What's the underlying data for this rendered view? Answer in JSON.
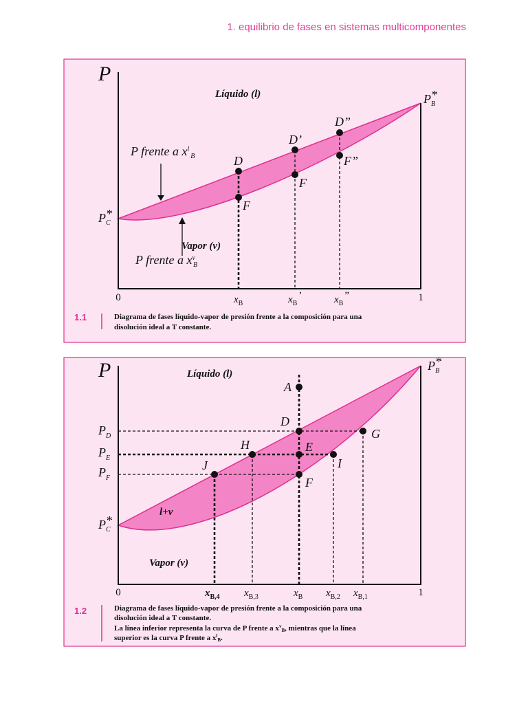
{
  "header": "1. equilibrio de fases en sistemas multicomponentes",
  "figures": [
    {
      "axis_label": "P",
      "liquid": "Líquido (l)",
      "vapor": "Vapor (v)",
      "p_b": {
        "main": "P",
        "sup": "*",
        "sub": "B"
      },
      "p_c": {
        "main": "P",
        "sup": "*",
        "sub": "C"
      },
      "curve_liquid": {
        "main": "P frente a x",
        "sup": "l",
        "sub": "B"
      },
      "curve_vapor": {
        "main": "P frente a x",
        "sup": "v",
        "sub": "B"
      },
      "points": [
        "D",
        "D’",
        "D”",
        "F",
        "F",
        "F”"
      ],
      "x_labels": [
        "0",
        {
          "main": "x",
          "sub": "B"
        },
        {
          "main": "x",
          "sub": "B",
          "sup": "’"
        },
        {
          "main": "x",
          "sub": "B",
          "sup": "”"
        },
        "1"
      ],
      "caption": {
        "number": "1.1",
        "lines": [
          "Diagrama de fases líquido-vapor de presión frente a la composición para una",
          "disolución ideal a T constante."
        ]
      }
    },
    {
      "axis_label": "P",
      "liquid": "Líquido (l)",
      "vapor": "Vapor (v)",
      "region": "l+v",
      "p_b": {
        "main": "P",
        "sup": "*",
        "sub": "B"
      },
      "p_c": {
        "main": "P",
        "sup": "*",
        "sub": "C"
      },
      "y_labels": [
        {
          "main": "P",
          "sub": "D"
        },
        {
          "main": "P",
          "sub": "E"
        },
        {
          "main": "P",
          "sub": "F"
        }
      ],
      "points": [
        "A",
        "D",
        "E",
        "F",
        "G",
        "H",
        "I",
        "J"
      ],
      "x_labels": [
        "0",
        {
          "main": "x",
          "sub": "B,4"
        },
        {
          "main": "x",
          "sub": "B,3"
        },
        {
          "main": "x",
          "sub": "B"
        },
        {
          "main": "x",
          "sub": "B,2"
        },
        {
          "main": "x",
          "sub": "B,1"
        },
        "1"
      ],
      "caption": {
        "number": "1.2",
        "lines": [
          "Diagrama de fases líquido-vapor de presión frente a la composición para una",
          "disolución ideal a T constante."
        ],
        "line3": {
          "text": "La línea inferior representa la curva de P frente a x",
          "sup": "v",
          "sub": "B",
          "rest": ", mientras que la línea"
        },
        "line4": {
          "text": "superior es la curva P frente a x",
          "sup": "l",
          "sub": "B",
          "rest": "."
        }
      }
    }
  ]
}
